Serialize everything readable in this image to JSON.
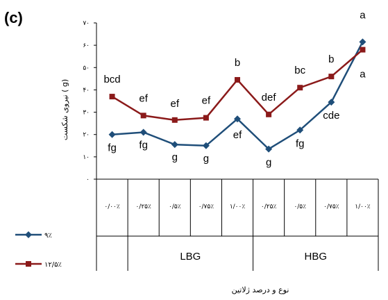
{
  "panel_label": "(c)",
  "chart_data": {
    "type": "line",
    "title": "",
    "ylabel": "نیروی شکست ( g)",
    "xlabel": "نوع و درصد ژلاتین",
    "ylim": [
      0,
      70
    ],
    "y_ticks": [
      0,
      10,
      20,
      30,
      40,
      50,
      60,
      70
    ],
    "y_tick_labels": [
      "۰",
      "۱۰",
      "۲۰",
      "۳۰",
      "۴۰",
      "۵۰",
      "۶۰",
      "۷۰"
    ],
    "categories": [
      "۰/۰۰٪",
      "۰/۲۵٪",
      "۰/۵٪",
      "۰/۷۵٪",
      "۱/۰۰٪",
      "۰/۲۵٪",
      "۰/۵٪",
      "۰/۷۵٪",
      "۱/۰۰٪"
    ],
    "groups": [
      {
        "label": "",
        "start": 0,
        "end": 0
      },
      {
        "label": "LBG",
        "start": 1,
        "end": 4
      },
      {
        "label": "HBG",
        "start": 5,
        "end": 8
      }
    ],
    "series": [
      {
        "name": "۹٪",
        "color": "#1f4e79",
        "marker": "diamond",
        "values": [
          20,
          21,
          15.5,
          15,
          27,
          13.5,
          22,
          34.5,
          61.5
        ],
        "labels": [
          "fg",
          "fg",
          "g",
          "g",
          "ef",
          "g",
          "fg",
          "cde",
          "a"
        ]
      },
      {
        "name": "۱۲/۵٪",
        "color": "#8b1a1a",
        "marker": "square",
        "values": [
          37,
          28.5,
          26.5,
          27.5,
          44.5,
          29,
          41,
          46,
          58
        ],
        "labels": [
          "bcd",
          "ef",
          "ef",
          "ef",
          "b",
          "def",
          "bc",
          "b",
          "a"
        ]
      }
    ],
    "legend_position": "bottom-left",
    "grid": false
  }
}
